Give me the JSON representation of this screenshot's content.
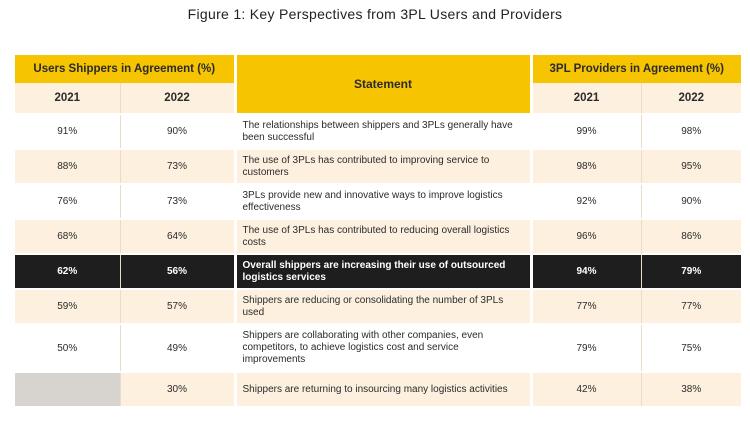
{
  "caption": "Figure 1: Key Perspectives from 3PL Users and Providers",
  "headers": {
    "users_group": "Users Shippers in Agreement (%)",
    "statement": "Statement",
    "providers_group": "3PL Providers in Agreement (%)",
    "year_a": "2021",
    "year_b": "2022"
  },
  "rows": [
    {
      "u2021": "91%",
      "u2022": "90%",
      "statement": "The relationships between shippers and 3PLs generally have been successful",
      "p2021": "99%",
      "p2022": "98%"
    },
    {
      "u2021": "88%",
      "u2022": "73%",
      "statement": "The use of 3PLs has contributed to improving service to customers",
      "p2021": "98%",
      "p2022": "95%"
    },
    {
      "u2021": "76%",
      "u2022": "73%",
      "statement": "3PLs provide new and innovative ways to improve logistics effectiveness",
      "p2021": "92%",
      "p2022": "90%"
    },
    {
      "u2021": "68%",
      "u2022": "64%",
      "statement": "The use of 3PLs has contributed to reducing overall logistics costs",
      "p2021": "96%",
      "p2022": "86%"
    },
    {
      "u2021": "62%",
      "u2022": "56%",
      "statement": "Overall shippers are increasing their use of outsourced logistics services",
      "p2021": "94%",
      "p2022": "79%"
    },
    {
      "u2021": "59%",
      "u2022": "57%",
      "statement": "Shippers are reducing or consolidating the number of 3PLs used",
      "p2021": "77%",
      "p2022": "77%"
    },
    {
      "u2021": "50%",
      "u2022": "49%",
      "statement": "Shippers are collaborating with other companies, even competitors, to achieve logistics cost and service improvements",
      "p2021": "79%",
      "p2022": "75%"
    },
    {
      "u2021": "",
      "u2022": "30%",
      "statement": "Shippers are returning to insourcing many logistics activities",
      "p2021": "42%",
      "p2022": "38%"
    }
  ]
}
